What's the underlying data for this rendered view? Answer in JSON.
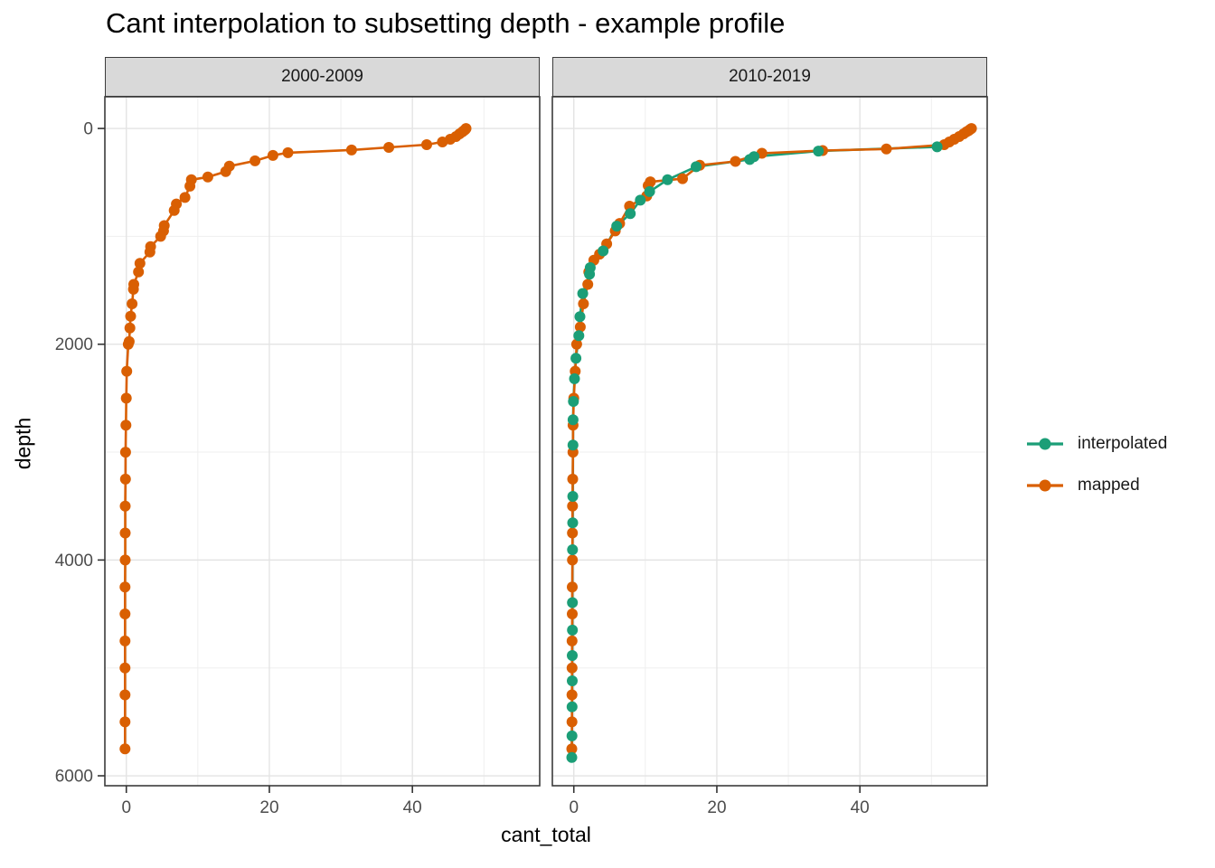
{
  "title": "Cant interpolation to subsetting depth - example profile",
  "legend": {
    "items": [
      {
        "label": "interpolated",
        "color": "#1B9E77"
      },
      {
        "label": "mapped",
        "color": "#D95F02"
      }
    ]
  },
  "colors": {
    "interpolated": "#1B9E77",
    "mapped": "#D95F02",
    "strip_background": "#D9D9D9",
    "panel_border": "#3b3b3b",
    "grid_major": "#E4E4E4",
    "grid_minor": "#EFEFEF",
    "tick_text": "#4D4D4D"
  },
  "chart_data": {
    "type": "line",
    "title": "Cant interpolation to subsetting depth - example profile",
    "xlabel": "cant_total",
    "ylabel": "depth",
    "x_ticks": [
      0,
      20,
      40
    ],
    "x_tick_labels": [
      "0",
      "20",
      "40"
    ],
    "x_minor_ticks": [
      10,
      30,
      50
    ],
    "y_ticks": [
      0,
      2000,
      4000,
      6000
    ],
    "y_tick_labels": [
      "0",
      "2000",
      "4000",
      "6000"
    ],
    "y_minor_ticks": [
      1000,
      3000,
      5000
    ],
    "xlim": [
      -3.0,
      57.8
    ],
    "ylim": [
      -294,
      6092
    ],
    "y_reversed": true,
    "grid": "major+minor",
    "legend_position": "right",
    "legend_title": "",
    "facets": [
      {
        "label": "2000-2009",
        "series": [
          {
            "name": "mapped",
            "color": "#D95F02",
            "points": [
              [
                47.5,
                0
              ],
              [
                47.4,
                10
              ],
              [
                47.2,
                20
              ],
              [
                47.0,
                30
              ],
              [
                46.6,
                50
              ],
              [
                46.1,
                75
              ],
              [
                45.3,
                100
              ],
              [
                44.2,
                125
              ],
              [
                42.0,
                150
              ],
              [
                36.7,
                175
              ],
              [
                31.5,
                200
              ],
              [
                22.6,
                225
              ],
              [
                20.5,
                250
              ],
              [
                18.0,
                300
              ],
              [
                14.4,
                350
              ],
              [
                13.9,
                400
              ],
              [
                11.4,
                450
              ],
              [
                9.1,
                475
              ],
              [
                8.9,
                535
              ],
              [
                8.2,
                640
              ],
              [
                7.0,
                700
              ],
              [
                6.7,
                760
              ],
              [
                5.3,
                900
              ],
              [
                5.2,
                950
              ],
              [
                4.8,
                1000
              ],
              [
                3.4,
                1095
              ],
              [
                3.3,
                1145
              ],
              [
                1.9,
                1250
              ],
              [
                1.7,
                1330
              ],
              [
                1.05,
                1445
              ],
              [
                1.0,
                1490
              ],
              [
                0.8,
                1625
              ],
              [
                0.6,
                1740
              ],
              [
                0.5,
                1850
              ],
              [
                0.4,
                1975
              ],
              [
                0.28,
                2000
              ],
              [
                0.06,
                2250
              ],
              [
                0.0,
                2500
              ],
              [
                -0.05,
                2750
              ],
              [
                -0.1,
                3000
              ],
              [
                -0.12,
                3250
              ],
              [
                -0.15,
                3500
              ],
              [
                -0.15,
                3750
              ],
              [
                -0.15,
                4000
              ],
              [
                -0.18,
                4250
              ],
              [
                -0.18,
                4500
              ],
              [
                -0.18,
                4750
              ],
              [
                -0.18,
                5000
              ],
              [
                -0.18,
                5250
              ],
              [
                -0.18,
                5500
              ],
              [
                -0.18,
                5750
              ]
            ]
          }
        ]
      },
      {
        "label": "2010-2019",
        "series": [
          {
            "name": "interpolated",
            "color": "#1B9E77",
            "points": [
              [
                50.8,
                170
              ],
              [
                34.2,
                210
              ],
              [
                25.2,
                262
              ],
              [
                24.6,
                288
              ],
              [
                17.1,
                355
              ],
              [
                13.1,
                475
              ],
              [
                10.6,
                585
              ],
              [
                9.3,
                665
              ],
              [
                7.9,
                790
              ],
              [
                6.0,
                905
              ],
              [
                4.1,
                1135
              ],
              [
                2.3,
                1290
              ],
              [
                2.2,
                1350
              ],
              [
                1.25,
                1530
              ],
              [
                0.85,
                1745
              ],
              [
                0.7,
                1920
              ],
              [
                0.3,
                2130
              ],
              [
                0.1,
                2320
              ],
              [
                -0.05,
                2530
              ],
              [
                -0.1,
                2700
              ],
              [
                -0.12,
                2935
              ],
              [
                -0.14,
                3410
              ],
              [
                -0.16,
                3655
              ],
              [
                -0.18,
                3905
              ],
              [
                -0.2,
                4395
              ],
              [
                -0.2,
                4650
              ],
              [
                -0.22,
                4885
              ],
              [
                -0.22,
                5120
              ],
              [
                -0.24,
                5360
              ],
              [
                -0.26,
                5630
              ],
              [
                -0.28,
                5830
              ]
            ]
          },
          {
            "name": "mapped",
            "color": "#D95F02",
            "points": [
              [
                55.6,
                0
              ],
              [
                55.4,
                10
              ],
              [
                55.2,
                20
              ],
              [
                54.9,
                30
              ],
              [
                54.5,
                50
              ],
              [
                53.9,
                75
              ],
              [
                53.2,
                100
              ],
              [
                52.5,
                125
              ],
              [
                51.8,
                150
              ],
              [
                43.7,
                190
              ],
              [
                34.8,
                205
              ],
              [
                26.3,
                230
              ],
              [
                22.6,
                305
              ],
              [
                17.6,
                340
              ],
              [
                15.2,
                465
              ],
              [
                10.7,
                495
              ],
              [
                10.4,
                530
              ],
              [
                10.2,
                625
              ],
              [
                7.8,
                720
              ],
              [
                6.4,
                880
              ],
              [
                5.8,
                950
              ],
              [
                4.6,
                1070
              ],
              [
                3.6,
                1165
              ],
              [
                2.8,
                1220
              ],
              [
                2.1,
                1330
              ],
              [
                1.95,
                1445
              ],
              [
                1.35,
                1625
              ],
              [
                0.9,
                1840
              ],
              [
                0.4,
                2000
              ],
              [
                0.2,
                2250
              ],
              [
                0.0,
                2500
              ],
              [
                -0.1,
                2750
              ],
              [
                -0.12,
                3000
              ],
              [
                -0.15,
                3250
              ],
              [
                -0.18,
                3500
              ],
              [
                -0.2,
                3750
              ],
              [
                -0.2,
                4000
              ],
              [
                -0.22,
                4250
              ],
              [
                -0.22,
                4500
              ],
              [
                -0.24,
                4750
              ],
              [
                -0.24,
                5000
              ],
              [
                -0.26,
                5250
              ],
              [
                -0.26,
                5500
              ],
              [
                -0.28,
                5750
              ]
            ]
          }
        ]
      }
    ]
  }
}
